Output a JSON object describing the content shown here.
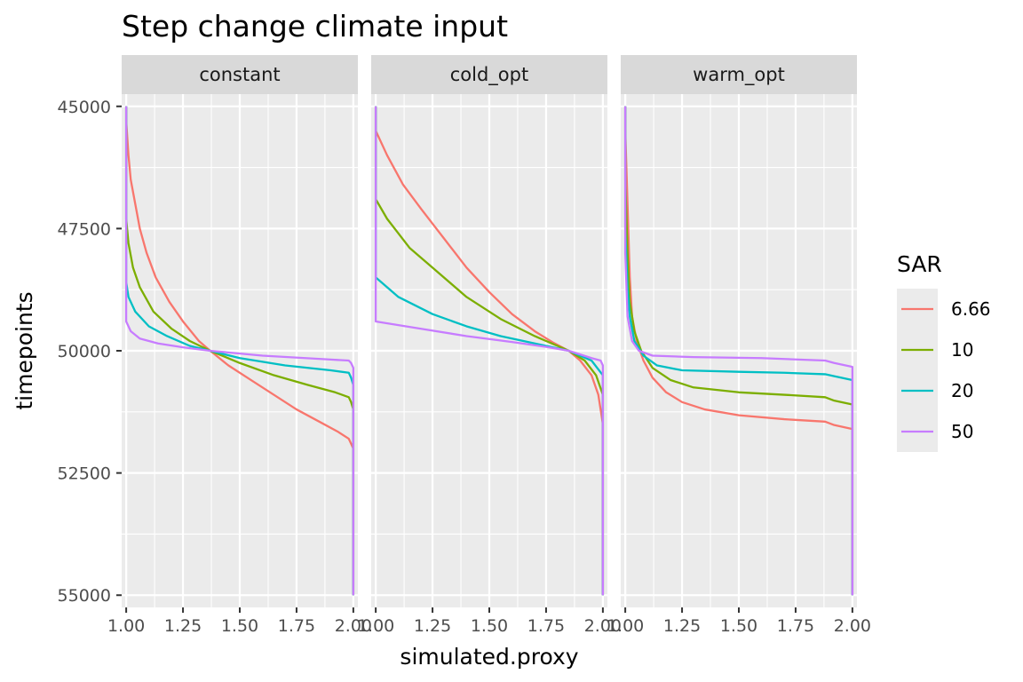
{
  "chart_data": {
    "type": "line",
    "title": "Step change climate input",
    "xlabel": "simulated.proxy",
    "ylabel": "timepoints",
    "xlim": [
      0.98,
      2.02
    ],
    "ylim": [
      44750,
      55250
    ],
    "y_reversed": true,
    "x_ticks": [
      1.0,
      1.25,
      1.5,
      1.75,
      2.0
    ],
    "x_tick_labels": [
      "1.00",
      "1.25",
      "1.50",
      "1.75",
      "2.00"
    ],
    "y_ticks": [
      45000,
      47500,
      50000,
      52500,
      55000
    ],
    "y_tick_labels": [
      "45000",
      "47500",
      "50000",
      "52500",
      "55000"
    ],
    "grid": true,
    "legend": {
      "title": "SAR",
      "placement": "right"
    },
    "series_styles": [
      {
        "name": "6.66",
        "color": "#F8766D"
      },
      {
        "name": "10",
        "color": "#7CAE00"
      },
      {
        "name": "20",
        "color": "#00BFC4"
      },
      {
        "name": "50",
        "color": "#C77CFF"
      }
    ],
    "panels": [
      {
        "label": "constant",
        "series": [
          {
            "name": "6.66",
            "points": [
              [
                1.0,
                45000
              ],
              [
                1.0,
                45300
              ],
              [
                1.01,
                46000
              ],
              [
                1.02,
                46500
              ],
              [
                1.04,
                47000
              ],
              [
                1.06,
                47500
              ],
              [
                1.09,
                48000
              ],
              [
                1.13,
                48500
              ],
              [
                1.19,
                49000
              ],
              [
                1.25,
                49400
              ],
              [
                1.32,
                49800
              ],
              [
                1.37,
                50000
              ],
              [
                1.45,
                50300
              ],
              [
                1.55,
                50600
              ],
              [
                1.65,
                50900
              ],
              [
                1.75,
                51200
              ],
              [
                1.85,
                51450
              ],
              [
                1.93,
                51650
              ],
              [
                1.98,
                51800
              ],
              [
                1.99,
                51900
              ],
              [
                2.0,
                52000
              ],
              [
                2.0,
                55000
              ]
            ]
          },
          {
            "name": "10",
            "points": [
              [
                1.0,
                45000
              ],
              [
                1.0,
                47300
              ],
              [
                1.01,
                47800
              ],
              [
                1.03,
                48300
              ],
              [
                1.06,
                48700
              ],
              [
                1.12,
                49200
              ],
              [
                1.2,
                49550
              ],
              [
                1.28,
                49800
              ],
              [
                1.37,
                50000
              ],
              [
                1.5,
                50250
              ],
              [
                1.65,
                50500
              ],
              [
                1.8,
                50700
              ],
              [
                1.92,
                50850
              ],
              [
                1.98,
                50950
              ],
              [
                1.99,
                51050
              ],
              [
                2.0,
                51200
              ],
              [
                2.0,
                55000
              ]
            ]
          },
          {
            "name": "20",
            "points": [
              [
                1.0,
                45000
              ],
              [
                1.0,
                48600
              ],
              [
                1.01,
                48900
              ],
              [
                1.04,
                49200
              ],
              [
                1.1,
                49500
              ],
              [
                1.18,
                49700
              ],
              [
                1.28,
                49900
              ],
              [
                1.37,
                50000
              ],
              [
                1.5,
                50150
              ],
              [
                1.7,
                50300
              ],
              [
                1.9,
                50400
              ],
              [
                1.98,
                50450
              ],
              [
                1.99,
                50550
              ],
              [
                2.0,
                50700
              ],
              [
                2.0,
                55000
              ]
            ]
          },
          {
            "name": "50",
            "points": [
              [
                1.0,
                45000
              ],
              [
                1.0,
                49400
              ],
              [
                1.02,
                49600
              ],
              [
                1.06,
                49750
              ],
              [
                1.14,
                49850
              ],
              [
                1.25,
                49930
              ],
              [
                1.37,
                50000
              ],
              [
                1.6,
                50100
              ],
              [
                1.9,
                50180
              ],
              [
                1.98,
                50200
              ],
              [
                1.99,
                50250
              ],
              [
                2.0,
                50350
              ],
              [
                2.0,
                55000
              ]
            ]
          }
        ]
      },
      {
        "label": "cold_opt",
        "series": [
          {
            "name": "6.66",
            "points": [
              [
                1.0,
                45000
              ],
              [
                1.0,
                45500
              ],
              [
                1.05,
                46000
              ],
              [
                1.12,
                46600
              ],
              [
                1.2,
                47100
              ],
              [
                1.3,
                47700
              ],
              [
                1.4,
                48300
              ],
              [
                1.5,
                48800
              ],
              [
                1.6,
                49250
              ],
              [
                1.7,
                49600
              ],
              [
                1.78,
                49830
              ],
              [
                1.85,
                50000
              ],
              [
                1.9,
                50200
              ],
              [
                1.95,
                50500
              ],
              [
                1.98,
                50900
              ],
              [
                2.0,
                51500
              ],
              [
                2.0,
                55000
              ]
            ]
          },
          {
            "name": "10",
            "points": [
              [
                1.0,
                45000
              ],
              [
                1.0,
                46900
              ],
              [
                1.05,
                47300
              ],
              [
                1.15,
                47900
              ],
              [
                1.25,
                48300
              ],
              [
                1.4,
                48900
              ],
              [
                1.55,
                49350
              ],
              [
                1.7,
                49700
              ],
              [
                1.8,
                49900
              ],
              [
                1.85,
                50000
              ],
              [
                1.92,
                50200
              ],
              [
                1.97,
                50500
              ],
              [
                2.0,
                50900
              ],
              [
                2.0,
                55000
              ]
            ]
          },
          {
            "name": "20",
            "points": [
              [
                1.0,
                45000
              ],
              [
                1.0,
                48500
              ],
              [
                1.1,
                48900
              ],
              [
                1.25,
                49250
              ],
              [
                1.4,
                49500
              ],
              [
                1.55,
                49700
              ],
              [
                1.7,
                49850
              ],
              [
                1.85,
                50000
              ],
              [
                1.95,
                50200
              ],
              [
                2.0,
                50500
              ],
              [
                2.0,
                55000
              ]
            ]
          },
          {
            "name": "50",
            "points": [
              [
                1.0,
                45000
              ],
              [
                1.0,
                49400
              ],
              [
                1.2,
                49550
              ],
              [
                1.4,
                49700
              ],
              [
                1.6,
                49820
              ],
              [
                1.75,
                49920
              ],
              [
                1.85,
                50000
              ],
              [
                1.95,
                50150
              ],
              [
                1.99,
                50200
              ],
              [
                2.0,
                50300
              ],
              [
                2.0,
                55000
              ]
            ]
          }
        ]
      },
      {
        "label": "warm_opt",
        "series": [
          {
            "name": "6.66",
            "points": [
              [
                1.0,
                45000
              ],
              [
                1.0,
                45500
              ],
              [
                1.01,
                47000
              ],
              [
                1.02,
                48500
              ],
              [
                1.03,
                49300
              ],
              [
                1.05,
                49800
              ],
              [
                1.08,
                50200
              ],
              [
                1.12,
                50550
              ],
              [
                1.18,
                50850
              ],
              [
                1.25,
                51050
              ],
              [
                1.35,
                51200
              ],
              [
                1.5,
                51320
              ],
              [
                1.7,
                51400
              ],
              [
                1.88,
                51450
              ],
              [
                1.92,
                51520
              ],
              [
                2.0,
                51600
              ],
              [
                2.0,
                55000
              ]
            ]
          },
          {
            "name": "10",
            "points": [
              [
                1.0,
                45000
              ],
              [
                1.0,
                46500
              ],
              [
                1.01,
                48000
              ],
              [
                1.02,
                49000
              ],
              [
                1.04,
                49600
              ],
              [
                1.07,
                50000
              ],
              [
                1.12,
                50350
              ],
              [
                1.2,
                50600
              ],
              [
                1.3,
                50750
              ],
              [
                1.5,
                50850
              ],
              [
                1.7,
                50900
              ],
              [
                1.88,
                50950
              ],
              [
                1.92,
                51020
              ],
              [
                2.0,
                51100
              ],
              [
                2.0,
                55000
              ]
            ]
          },
          {
            "name": "20",
            "points": [
              [
                1.0,
                45000
              ],
              [
                1.0,
                47500
              ],
              [
                1.01,
                48700
              ],
              [
                1.02,
                49300
              ],
              [
                1.04,
                49800
              ],
              [
                1.08,
                50100
              ],
              [
                1.14,
                50300
              ],
              [
                1.25,
                50400
              ],
              [
                1.5,
                50430
              ],
              [
                1.7,
                50450
              ],
              [
                1.88,
                50480
              ],
              [
                1.92,
                50520
              ],
              [
                2.0,
                50600
              ],
              [
                2.0,
                55000
              ]
            ]
          },
          {
            "name": "50",
            "points": [
              [
                1.0,
                45000
              ],
              [
                1.0,
                48000
              ],
              [
                1.01,
                49300
              ],
              [
                1.03,
                49800
              ],
              [
                1.06,
                50000
              ],
              [
                1.12,
                50100
              ],
              [
                1.3,
                50130
              ],
              [
                1.6,
                50150
              ],
              [
                1.88,
                50200
              ],
              [
                1.92,
                50250
              ],
              [
                2.0,
                50330
              ],
              [
                2.0,
                55000
              ]
            ]
          }
        ]
      }
    ]
  }
}
